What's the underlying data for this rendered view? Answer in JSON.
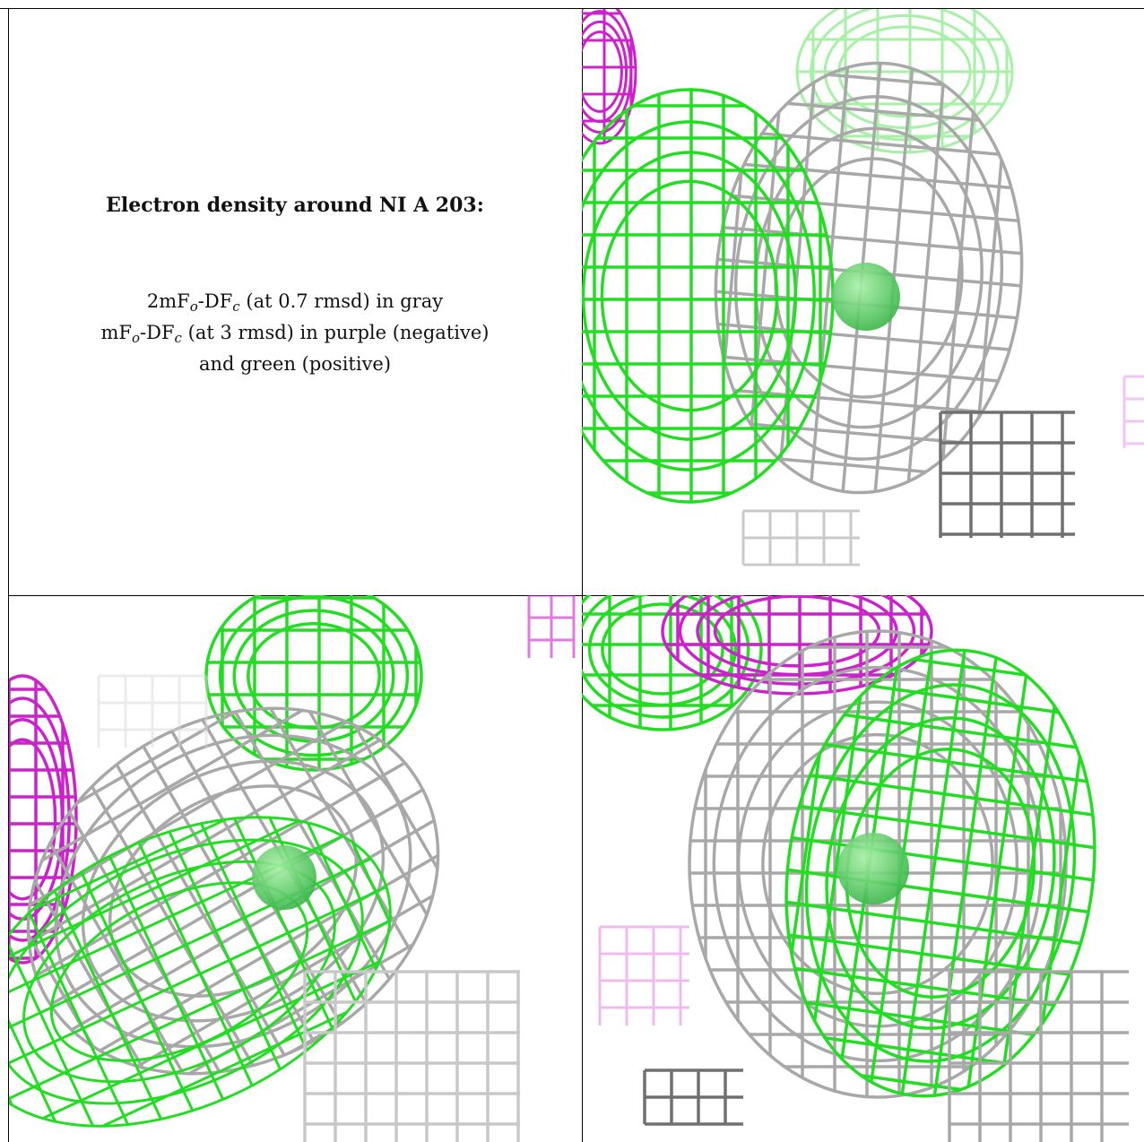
{
  "title": "Electron density around NI A 203:",
  "legend": {
    "line1": {
      "a": "2mF",
      "a_sub": "o",
      "b": "-DF",
      "b_sub": "c",
      "c": " (at 0.7 rmsd) in gray"
    },
    "line2": {
      "a": "mF",
      "a_sub": "o",
      "b": "-DF",
      "b_sub": "c",
      "c": " (at 3 rmsd) in purple (negative)"
    },
    "line3": "and green (positive)"
  },
  "colors": {
    "gray_mesh": "#a8a8a8",
    "gray_dark": "#707070",
    "positive": "#22dd22",
    "negative": "#cc22cc",
    "atom": "#3cb84a"
  },
  "panels": [
    {
      "name": "view-1",
      "atom": "NI A 203"
    },
    {
      "name": "view-2",
      "atom": "NI A 203"
    },
    {
      "name": "view-3",
      "atom": "NI A 203"
    }
  ]
}
